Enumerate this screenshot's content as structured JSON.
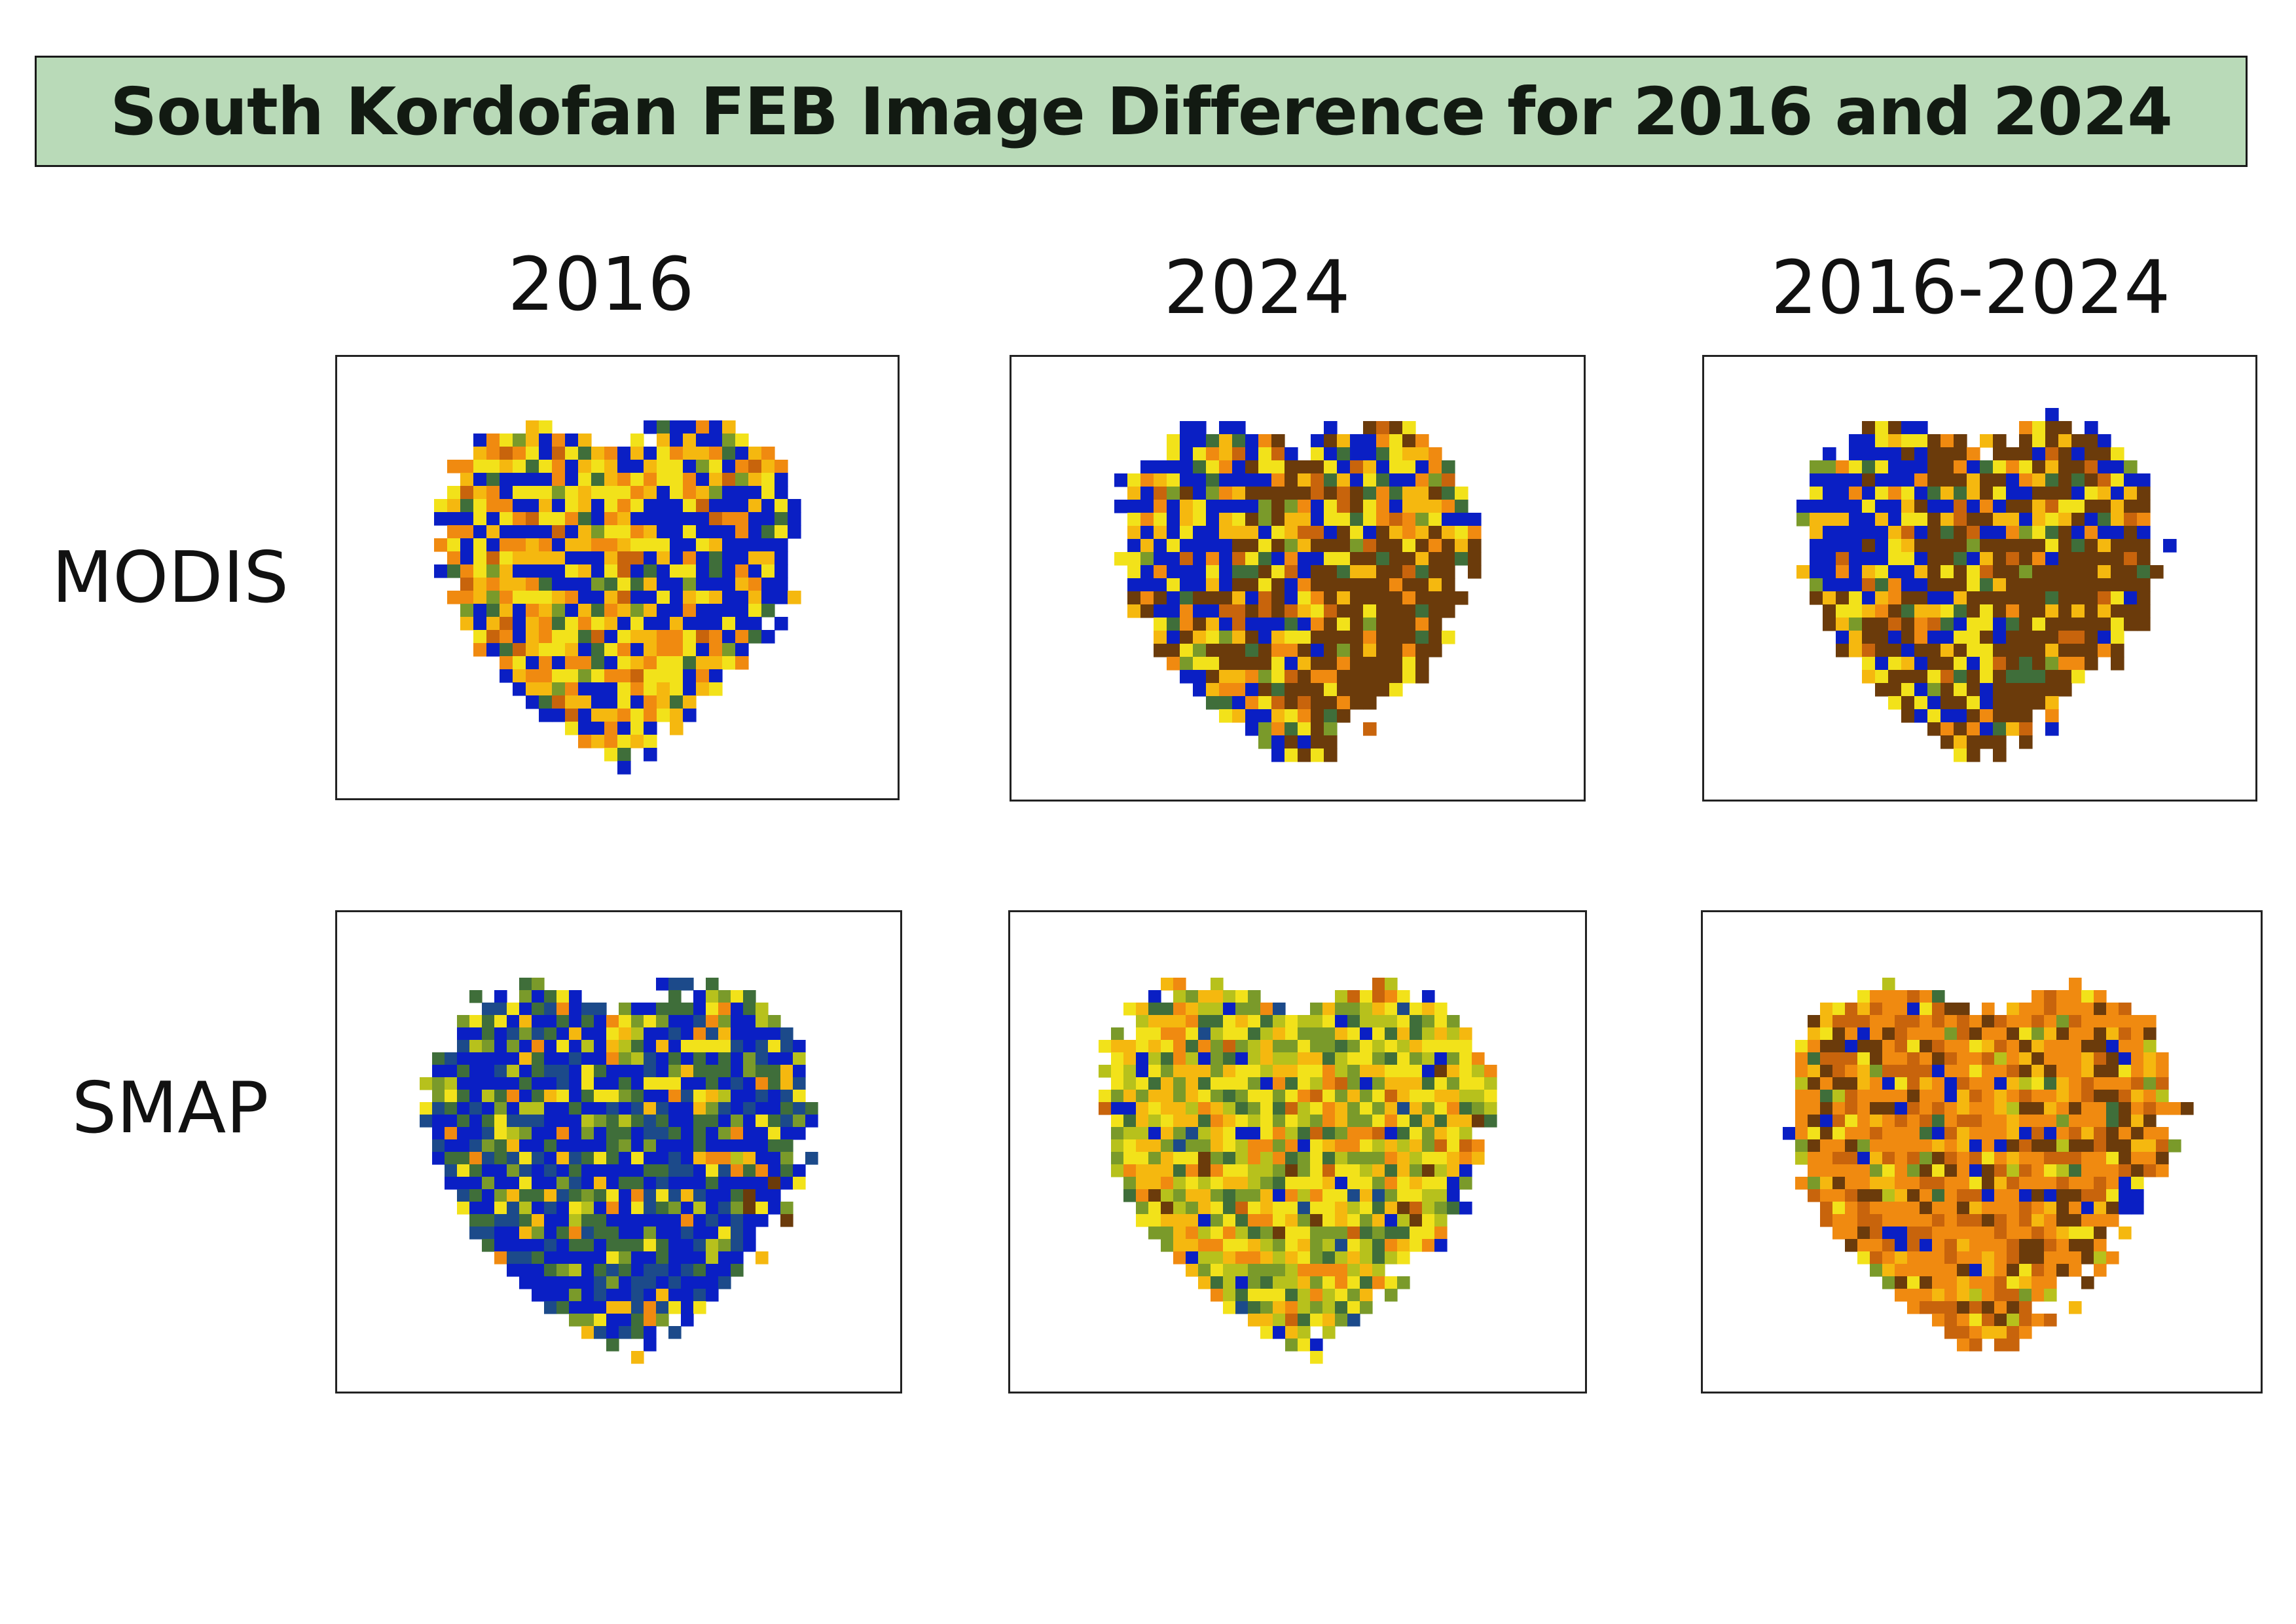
{
  "title": "South Kordofan FEB Image Difference for 2016 and 2024",
  "columns": [
    {
      "id": "c2016",
      "label": "2016"
    },
    {
      "id": "c2024",
      "label": "2024"
    },
    {
      "id": "cdiff",
      "label": "2016-2024"
    }
  ],
  "rows": [
    {
      "id": "modis",
      "label": "MODIS"
    },
    {
      "id": "smap",
      "label": "SMAP"
    }
  ],
  "colors": {
    "title_background": "#b9dab8",
    "palette": [
      "#0a1fc4",
      "#1c4a8a",
      "#3f6e3a",
      "#7a9a2a",
      "#b7c11c",
      "#f2e21a",
      "#f5b80f",
      "#f08a10",
      "#c8640c",
      "#6b3b0b"
    ]
  }
}
